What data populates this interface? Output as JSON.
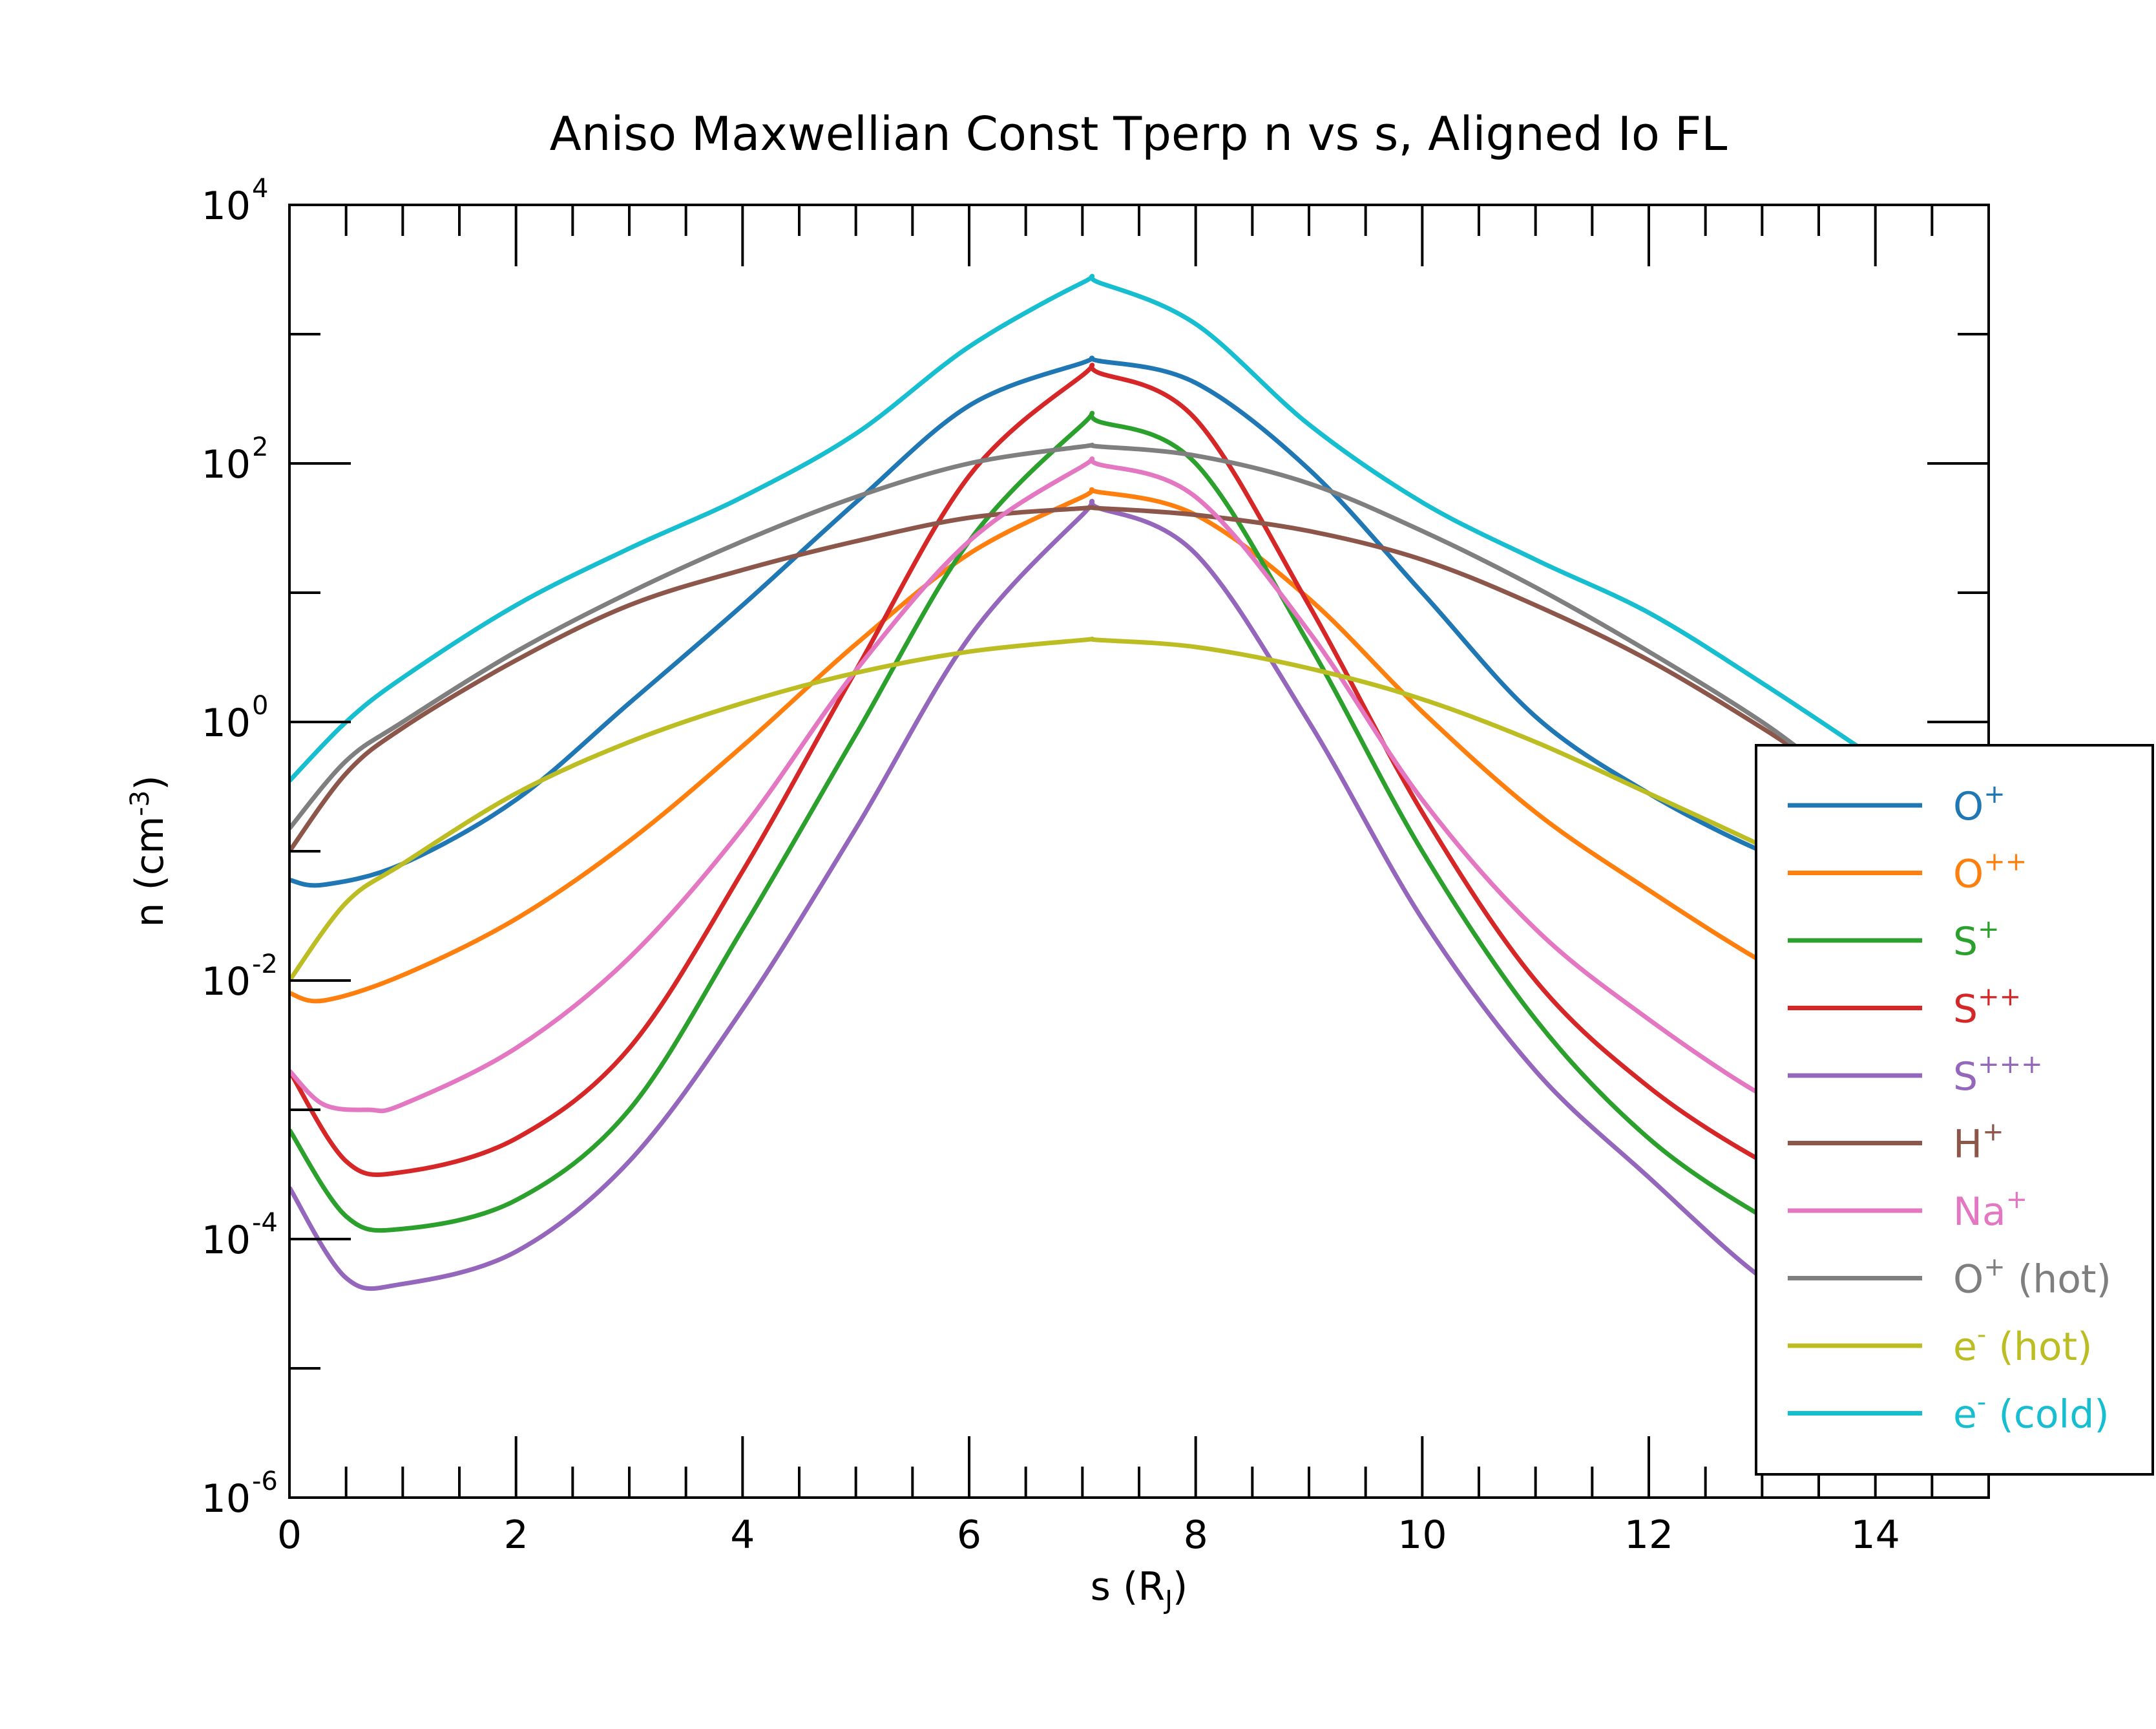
{
  "chart_data": {
    "type": "line",
    "title": "Aniso Maxwellian Const Tperp n vs s, Aligned Io FL",
    "xlabel": {
      "main": "s (R",
      "sub": "J",
      "tail": ")"
    },
    "ylabel": {
      "main": "n (cm",
      "sup": "-3",
      "tail": ")"
    },
    "xlim": [
      0,
      15
    ],
    "ylim": [
      1e-06,
      10000.0
    ],
    "yscale": "log",
    "x_ticks": [
      0,
      2,
      4,
      6,
      8,
      10,
      12,
      14
    ],
    "x_tick_labels": [
      "0",
      "2",
      "4",
      "6",
      "8",
      "10",
      "12",
      "14"
    ],
    "y_ticks": [
      {
        "value": 10000.0,
        "base": "10",
        "exp": "4"
      },
      {
        "value": 100.0,
        "base": "10",
        "exp": "2"
      },
      {
        "value": 1,
        "base": "10",
        "exp": "0"
      },
      {
        "value": 0.01,
        "base": "10",
        "exp": "-2"
      },
      {
        "value": 0.0001,
        "base": "10",
        "exp": "-4"
      },
      {
        "value": 1e-06,
        "base": "10",
        "exp": "-6"
      }
    ],
    "legend_position": "right",
    "grid": false,
    "series": [
      {
        "name": "O",
        "sup": "+",
        "suffix": "",
        "color": "#1f77b4",
        "x": [
          0,
          0.3,
          1,
          2,
          3,
          4,
          5,
          6,
          7,
          7.15,
          8,
          9,
          10,
          11,
          12,
          13,
          13.6
        ],
        "y": [
          0.06,
          0.055,
          0.08,
          0.25,
          1.4,
          8,
          50,
          280,
          600,
          620,
          420,
          90,
          10,
          1.1,
          0.28,
          0.1,
          0.07
        ]
      },
      {
        "name": "O",
        "sup": "++",
        "suffix": "",
        "color": "#ff7f0e",
        "x": [
          0,
          0.3,
          1,
          2,
          3,
          4,
          5,
          6,
          7,
          7.15,
          8,
          9,
          10,
          11,
          12,
          13,
          13.6
        ],
        "y": [
          0.008,
          0.007,
          0.011,
          0.03,
          0.12,
          0.65,
          4,
          20,
          55,
          60,
          40,
          9,
          1.2,
          0.2,
          0.05,
          0.014,
          0.008
        ]
      },
      {
        "name": "S",
        "sup": "+",
        "suffix": "",
        "color": "#2ca02c",
        "x": [
          0,
          0.5,
          1,
          2,
          3,
          4,
          5,
          6,
          7,
          7.15,
          8,
          9,
          10,
          11,
          12,
          13,
          13.6
        ],
        "y": [
          0.0007,
          0.00015,
          0.00012,
          0.0002,
          0.001,
          0.025,
          0.8,
          25,
          200,
          210,
          100,
          4,
          0.1,
          0.005,
          0.0006,
          0.00015,
          9e-05
        ]
      },
      {
        "name": "S",
        "sup": "++",
        "suffix": "",
        "color": "#d62728",
        "x": [
          0,
          0.5,
          1,
          2,
          3,
          4,
          5,
          6,
          7,
          7.15,
          8,
          9,
          10,
          11,
          12,
          13,
          13.6
        ],
        "y": [
          0.002,
          0.0004,
          0.00033,
          0.0006,
          0.003,
          0.07,
          2.5,
          80,
          480,
          500,
          220,
          8,
          0.2,
          0.01,
          0.0015,
          0.0004,
          0.00025
        ]
      },
      {
        "name": "S",
        "sup": "+++",
        "suffix": "",
        "color": "#9467bd",
        "x": [
          0,
          0.5,
          1,
          2,
          3,
          4,
          5,
          6,
          7,
          7.15,
          8,
          9,
          10,
          11,
          12,
          13,
          13.6
        ],
        "y": [
          0.00025,
          5e-05,
          4.5e-05,
          8e-05,
          0.0004,
          0.006,
          0.15,
          4.5,
          40,
          45,
          20,
          1,
          0.03,
          0.002,
          0.0003,
          5e-05,
          3e-05
        ]
      },
      {
        "name": "H",
        "sup": "+",
        "suffix": "",
        "color": "#8c564b",
        "x": [
          0,
          0.5,
          1,
          2,
          3,
          4,
          5,
          6,
          7,
          7.15,
          8,
          9,
          10,
          11,
          12,
          13,
          13.6
        ],
        "y": [
          0.1,
          0.4,
          0.9,
          3,
          8,
          15,
          25,
          38,
          45,
          45,
          40,
          30,
          18,
          8,
          3,
          0.9,
          0.4
        ]
      },
      {
        "name": "Na",
        "sup": "+",
        "suffix": "",
        "color": "#e377c2",
        "x": [
          0,
          0.3,
          0.7,
          1,
          2,
          3,
          4,
          5,
          6,
          7,
          7.15,
          8,
          9,
          10,
          11,
          12,
          13,
          13.6
        ],
        "y": [
          0.002,
          0.0011,
          0.001,
          0.0011,
          0.003,
          0.015,
          0.15,
          2.5,
          25,
          95,
          98,
          55,
          5,
          0.25,
          0.025,
          0.005,
          0.0013,
          0.0008
        ]
      },
      {
        "name": "O",
        "sup": "+",
        "suffix": " (hot)",
        "color": "#7f7f7f",
        "x": [
          0,
          0.5,
          1,
          2,
          3,
          4,
          5,
          6,
          7,
          7.15,
          8,
          9,
          10,
          11,
          12,
          13,
          13.6
        ],
        "y": [
          0.15,
          0.5,
          1,
          3.5,
          10,
          25,
          55,
          100,
          135,
          135,
          115,
          70,
          30,
          11,
          3.5,
          1,
          0.4
        ]
      },
      {
        "name": "e",
        "sup": "-",
        "suffix": " (hot)",
        "color": "#bcbd22",
        "x": [
          0,
          0.5,
          1,
          2,
          3,
          4,
          5,
          6,
          7,
          7.15,
          8,
          9,
          10,
          11,
          12,
          13,
          13.6
        ],
        "y": [
          0.01,
          0.04,
          0.08,
          0.28,
          0.7,
          1.4,
          2.4,
          3.5,
          4.3,
          4.3,
          3.8,
          2.6,
          1.5,
          0.7,
          0.28,
          0.11,
          0.06
        ]
      },
      {
        "name": "e",
        "sup": "-",
        "suffix": " (cold)",
        "color": "#17becf",
        "x": [
          0,
          0.5,
          1,
          2,
          3,
          4,
          5,
          6,
          7,
          7.15,
          8,
          9,
          10,
          11,
          12,
          13,
          13.9
        ],
        "y": [
          0.35,
          1,
          2.2,
          8,
          22,
          55,
          170,
          800,
          2500,
          2500,
          1200,
          200,
          50,
          18,
          7,
          2,
          0.6
        ]
      }
    ]
  }
}
